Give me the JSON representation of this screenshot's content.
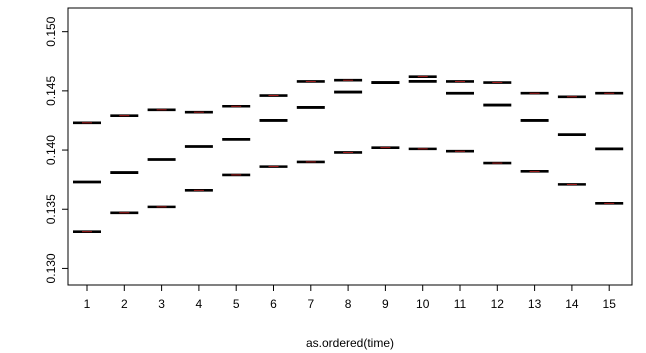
{
  "chart_data": {
    "type": "boxplot",
    "xlabel": "as.ordered(time)",
    "ylabel": "",
    "title": "",
    "categories": [
      "1",
      "2",
      "3",
      "4",
      "5",
      "6",
      "7",
      "8",
      "9",
      "10",
      "11",
      "12",
      "13",
      "14",
      "15"
    ],
    "ylim": [
      0.1286,
      0.152
    ],
    "yticks": [
      0.13,
      0.135,
      0.14,
      0.145,
      0.15
    ],
    "ytick_labels": [
      "0.130",
      "0.135",
      "0.140",
      "0.145",
      "0.150"
    ],
    "grid": false,
    "series": [
      {
        "upper": [
          0.1423,
          0.1429,
          0.1434,
          0.1432,
          0.1437,
          0.1446,
          0.1458,
          0.1459,
          0.1457,
          0.1462,
          0.1458,
          0.1457,
          0.1448,
          0.1445,
          0.1448
        ],
        "median": [
          0.1373,
          0.1381,
          0.1392,
          0.1403,
          0.1409,
          0.1425,
          0.1436,
          0.1449,
          0.1457,
          0.1458,
          0.1448,
          0.1438,
          0.1425,
          0.1413,
          0.1401
        ],
        "lower": [
          0.1331,
          0.1347,
          0.1352,
          0.1366,
          0.1379,
          0.1386,
          0.139,
          0.1398,
          0.1402,
          0.1401,
          0.1399,
          0.1389,
          0.1382,
          0.1371,
          0.1355
        ]
      }
    ],
    "colors": {
      "line": "#000000",
      "accent": "#cc2222"
    }
  }
}
